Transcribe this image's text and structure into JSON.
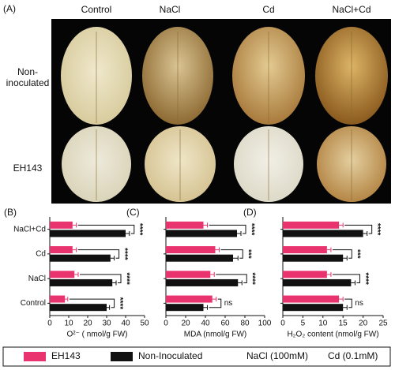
{
  "panel_a": {
    "label": "(A)",
    "columns": [
      "Control",
      "NaCl",
      "Cd",
      "NaCl+Cd"
    ],
    "rows": [
      "Non-\ninoculated",
      "EH143"
    ]
  },
  "legend_notes": [
    "NaCl (100mM)",
    "Cd (0.1mM)"
  ],
  "chart_data": [
    {
      "type": "bar",
      "orientation": "horizontal",
      "panel_label": "(B)",
      "categories": [
        "NaCl+Cd",
        "Cd",
        "NaCl",
        "Control"
      ],
      "series": [
        {
          "name": "EH143",
          "color": "#e8336e",
          "values": [
            12,
            12,
            13,
            8
          ],
          "errors": [
            2,
            2,
            2,
            1.5
          ]
        },
        {
          "name": "Non-Inoculated",
          "color": "#111111",
          "values": [
            40,
            32,
            33,
            30
          ],
          "errors": [
            2,
            2,
            2,
            1.5
          ]
        }
      ],
      "xlim": [
        0,
        50
      ],
      "xticks": [
        0,
        10,
        20,
        30,
        40,
        50
      ],
      "xlabel": "O²⁻ ( nmol/g FW)",
      "significance": [
        "****",
        "****",
        "****",
        "****"
      ]
    },
    {
      "type": "bar",
      "orientation": "horizontal",
      "panel_label": "(C)",
      "categories": [
        null,
        null,
        null,
        null
      ],
      "series": [
        {
          "name": "EH143",
          "color": "#e8336e",
          "values": [
            38,
            50,
            45,
            47
          ],
          "errors": [
            4,
            4,
            4,
            4
          ]
        },
        {
          "name": "Non-Inoculated",
          "color": "#111111",
          "values": [
            72,
            68,
            73,
            38
          ],
          "errors": [
            4,
            5,
            4,
            4
          ]
        }
      ],
      "xlim": [
        0,
        100
      ],
      "xticks": [
        0,
        20,
        40,
        60,
        80,
        100
      ],
      "xlabel": "MDA (nmol/g FW)",
      "significance": [
        "****",
        "***",
        "****",
        "ns"
      ]
    },
    {
      "type": "bar",
      "orientation": "horizontal",
      "panel_label": "(D)",
      "categories": [
        null,
        null,
        null,
        null
      ],
      "series": [
        {
          "name": "EH143",
          "color": "#e8336e",
          "values": [
            14,
            11,
            11,
            14
          ],
          "errors": [
            1,
            1,
            1,
            1
          ]
        },
        {
          "name": "Non-Inoculated",
          "color": "#111111",
          "values": [
            20,
            15,
            17,
            15
          ],
          "errors": [
            1,
            1,
            1,
            1
          ]
        }
      ],
      "xlim": [
        0,
        25
      ],
      "xticks": [
        0,
        5,
        10,
        15,
        20,
        25
      ],
      "xlabel": "H₂O₂ content (nmol/g FW)",
      "significance": [
        "****",
        "***",
        "****",
        "ns"
      ]
    }
  ]
}
